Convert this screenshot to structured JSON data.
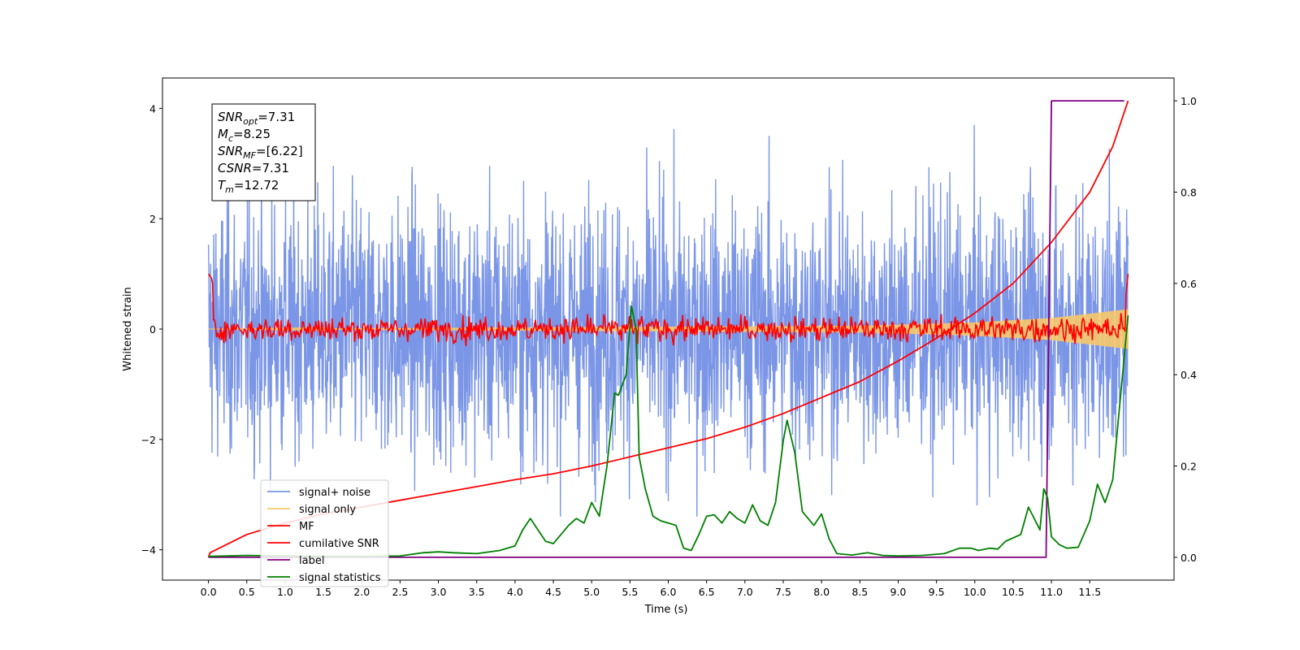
{
  "chart_data": {
    "type": "line",
    "xlabel": "Time (s)",
    "ylabel": "Whitened strain",
    "xlim": [
      -0.6,
      12.6
    ],
    "ylim": [
      -4.55,
      4.55
    ],
    "y2lim": [
      -0.05,
      1.05
    ],
    "x_ticks": [
      0.0,
      0.5,
      1.0,
      1.5,
      2.0,
      2.5,
      3.0,
      3.5,
      4.0,
      4.5,
      5.0,
      5.5,
      6.0,
      6.5,
      7.0,
      7.5,
      8.0,
      8.5,
      9.0,
      9.5,
      10.0,
      10.5,
      11.0,
      11.5
    ],
    "x_tick_labels": [
      "0.0",
      "0.5",
      "1.0",
      "1.5",
      "2.0",
      "2.5",
      "3.0",
      "3.5",
      "4.0",
      "4.5",
      "5.0",
      "5.5",
      "6.0",
      "6.5",
      "7.0",
      "7.5",
      "8.0",
      "8.5",
      "9.0",
      "9.5",
      "10.0",
      "10.5",
      "11.0",
      "11.5"
    ],
    "y_ticks": [
      -4,
      -2,
      0,
      2,
      4
    ],
    "y_tick_labels": [
      "−4",
      "−2",
      "0",
      "2",
      "4"
    ],
    "y2_ticks": [
      0.0,
      0.2,
      0.4,
      0.6,
      0.8,
      1.0
    ],
    "y2_tick_labels": [
      "0.0",
      "0.2",
      "0.4",
      "0.6",
      "0.8",
      "1.0"
    ],
    "info_box": [
      {
        "name": "SNR",
        "sub": "opt",
        "value": "=7.31"
      },
      {
        "name": "M",
        "sub": "c",
        "value": "=8.25"
      },
      {
        "name": "SNR",
        "sub": "MF",
        "value": "=[6.22]"
      },
      {
        "name": "CSNR",
        "sub": "",
        "value": "=7.31"
      },
      {
        "name": "T",
        "sub": "m",
        "value": "=12.72"
      }
    ],
    "legend_position": "lower-left",
    "series": [
      {
        "name": "signal+ noise",
        "color": "#7b96e6",
        "axis": "left",
        "x_range": [
          0.0,
          12.0
        ],
        "amplitude_range": [
          -3.4,
          4.1
        ],
        "note": "dense noise band"
      },
      {
        "name": "signal only",
        "color": "#f7c86a",
        "axis": "left",
        "x_range": [
          0.0,
          12.0
        ],
        "envelope": [
          [
            0.0,
            0.0
          ],
          [
            8.5,
            0.06
          ],
          [
            10.0,
            0.12
          ],
          [
            11.0,
            0.2
          ],
          [
            12.0,
            0.36
          ]
        ]
      },
      {
        "name": "MF",
        "color": "#ff0000",
        "axis": "left",
        "x_range": [
          0.0,
          12.0
        ],
        "points": [
          [
            0.0,
            1.0
          ],
          [
            0.05,
            0.9
          ],
          [
            0.1,
            -0.1
          ],
          [
            0.3,
            0.1
          ],
          [
            0.5,
            -0.2
          ],
          [
            0.5,
            0.35
          ],
          [
            1.0,
            0.25
          ],
          [
            1.5,
            0.35
          ],
          [
            2.0,
            0.1
          ],
          [
            2.5,
            0.2
          ],
          [
            3.0,
            0.1
          ],
          [
            3.5,
            -0.1
          ],
          [
            4.0,
            0.05
          ],
          [
            4.5,
            0.2
          ],
          [
            5.0,
            0.0
          ],
          [
            5.5,
            0.35
          ],
          [
            6.0,
            0.1
          ],
          [
            6.5,
            0.25
          ],
          [
            7.0,
            0.1
          ],
          [
            7.5,
            0.2
          ],
          [
            8.0,
            0.55
          ],
          [
            8.5,
            0.1
          ],
          [
            9.0,
            0.2
          ],
          [
            9.5,
            0.15
          ],
          [
            10.0,
            0.2
          ],
          [
            10.5,
            0.0
          ],
          [
            11.0,
            0.25
          ],
          [
            11.5,
            0.2
          ],
          [
            11.95,
            0.3
          ],
          [
            12.0,
            1.0
          ]
        ]
      },
      {
        "name": "cumilative SNR",
        "color": "#ff0000",
        "axis": "right",
        "points": [
          [
            0.0,
            0.0
          ],
          [
            0.02,
            0.01
          ],
          [
            0.5,
            0.05
          ],
          [
            1.0,
            0.075
          ],
          [
            1.5,
            0.095
          ],
          [
            2.0,
            0.11
          ],
          [
            2.5,
            0.125
          ],
          [
            3.0,
            0.14
          ],
          [
            3.5,
            0.155
          ],
          [
            4.0,
            0.17
          ],
          [
            4.5,
            0.183
          ],
          [
            5.0,
            0.2
          ],
          [
            5.5,
            0.22
          ],
          [
            6.0,
            0.24
          ],
          [
            6.5,
            0.26
          ],
          [
            7.0,
            0.285
          ],
          [
            7.5,
            0.315
          ],
          [
            8.0,
            0.35
          ],
          [
            8.5,
            0.385
          ],
          [
            9.0,
            0.43
          ],
          [
            9.5,
            0.48
          ],
          [
            10.0,
            0.535
          ],
          [
            10.5,
            0.6
          ],
          [
            11.0,
            0.69
          ],
          [
            11.5,
            0.8
          ],
          [
            11.8,
            0.9
          ],
          [
            12.0,
            1.0
          ]
        ]
      },
      {
        "name": "label",
        "color": "#800080",
        "axis": "right",
        "points": [
          [
            0.0,
            0.0
          ],
          [
            10.93,
            0.0
          ],
          [
            11.0,
            1.0
          ],
          [
            11.95,
            1.0
          ]
        ]
      },
      {
        "name": "signal statistics",
        "color": "#008000",
        "axis": "right",
        "points": [
          [
            0.0,
            0.002
          ],
          [
            0.5,
            0.004
          ],
          [
            1.0,
            0.003
          ],
          [
            1.5,
            0.002
          ],
          [
            2.0,
            0.002
          ],
          [
            2.5,
            0.003
          ],
          [
            2.8,
            0.01
          ],
          [
            3.0,
            0.012
          ],
          [
            3.2,
            0.01
          ],
          [
            3.5,
            0.008
          ],
          [
            3.8,
            0.015
          ],
          [
            4.0,
            0.025
          ],
          [
            4.1,
            0.06
          ],
          [
            4.2,
            0.085
          ],
          [
            4.3,
            0.06
          ],
          [
            4.4,
            0.035
          ],
          [
            4.5,
            0.03
          ],
          [
            4.7,
            0.07
          ],
          [
            4.8,
            0.085
          ],
          [
            4.9,
            0.075
          ],
          [
            5.0,
            0.12
          ],
          [
            5.1,
            0.09
          ],
          [
            5.2,
            0.2
          ],
          [
            5.3,
            0.36
          ],
          [
            5.35,
            0.355
          ],
          [
            5.45,
            0.4
          ],
          [
            5.52,
            0.55
          ],
          [
            5.58,
            0.5
          ],
          [
            5.62,
            0.22
          ],
          [
            5.7,
            0.15
          ],
          [
            5.8,
            0.09
          ],
          [
            5.9,
            0.08
          ],
          [
            6.0,
            0.075
          ],
          [
            6.1,
            0.07
          ],
          [
            6.2,
            0.02
          ],
          [
            6.3,
            0.015
          ],
          [
            6.4,
            0.05
          ],
          [
            6.5,
            0.09
          ],
          [
            6.6,
            0.093
          ],
          [
            6.7,
            0.075
          ],
          [
            6.8,
            0.1
          ],
          [
            6.9,
            0.085
          ],
          [
            7.0,
            0.075
          ],
          [
            7.1,
            0.115
          ],
          [
            7.2,
            0.08
          ],
          [
            7.3,
            0.07
          ],
          [
            7.4,
            0.12
          ],
          [
            7.5,
            0.255
          ],
          [
            7.55,
            0.3
          ],
          [
            7.65,
            0.23
          ],
          [
            7.75,
            0.1
          ],
          [
            7.9,
            0.07
          ],
          [
            8.0,
            0.095
          ],
          [
            8.1,
            0.04
          ],
          [
            8.2,
            0.008
          ],
          [
            8.4,
            0.005
          ],
          [
            8.6,
            0.01
          ],
          [
            8.8,
            0.004
          ],
          [
            9.0,
            0.003
          ],
          [
            9.3,
            0.004
          ],
          [
            9.6,
            0.008
          ],
          [
            9.8,
            0.02
          ],
          [
            9.95,
            0.02
          ],
          [
            10.05,
            0.015
          ],
          [
            10.2,
            0.02
          ],
          [
            10.3,
            0.018
          ],
          [
            10.4,
            0.035
          ],
          [
            10.6,
            0.05
          ],
          [
            10.7,
            0.11
          ],
          [
            10.85,
            0.06
          ],
          [
            10.9,
            0.15
          ],
          [
            10.95,
            0.13
          ],
          [
            11.0,
            0.045
          ],
          [
            11.1,
            0.028
          ],
          [
            11.2,
            0.02
          ],
          [
            11.35,
            0.022
          ],
          [
            11.5,
            0.08
          ],
          [
            11.6,
            0.16
          ],
          [
            11.7,
            0.12
          ],
          [
            11.8,
            0.17
          ],
          [
            11.9,
            0.35
          ],
          [
            12.0,
            0.53
          ]
        ]
      }
    ]
  }
}
